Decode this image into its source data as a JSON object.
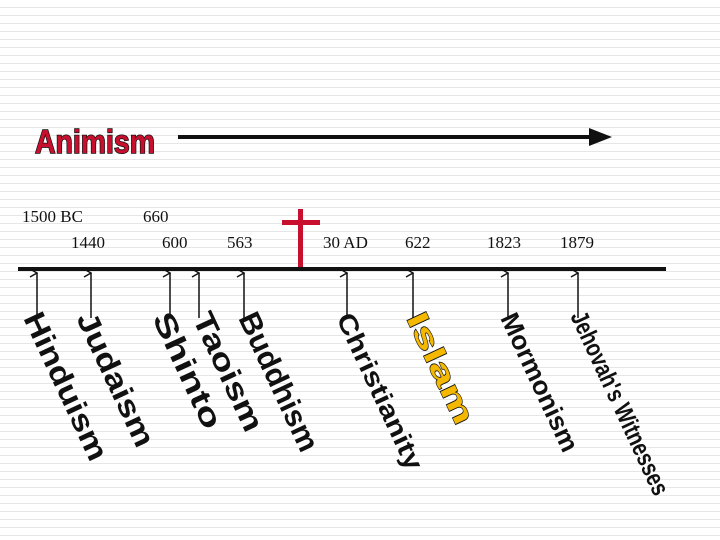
{
  "title": "Animism",
  "dates": {
    "d1500bc": "1500 BC",
    "d1440": "1440",
    "d660": "660",
    "d600": "600",
    "d563": "563",
    "d30ad": "30 AD",
    "d622": "622",
    "d1823": "1823",
    "d1879": "1879"
  },
  "religions": {
    "hinduism": "Hinduism",
    "judaism": "Judaism",
    "shinto": "Shinto",
    "taoism": "Taoism",
    "buddhism": "Buddhism",
    "christianity": "Christianity",
    "islam": "Islam",
    "mormonism": "Mormonism",
    "jehovahs_witnesses": "Jehovah's Witnesses"
  },
  "icons": {
    "cross": "cross-icon"
  },
  "colors": {
    "title_fill": "#c8102e",
    "islam_fill": "#f5b800",
    "cross": "#c8102e",
    "line": "#111111"
  }
}
